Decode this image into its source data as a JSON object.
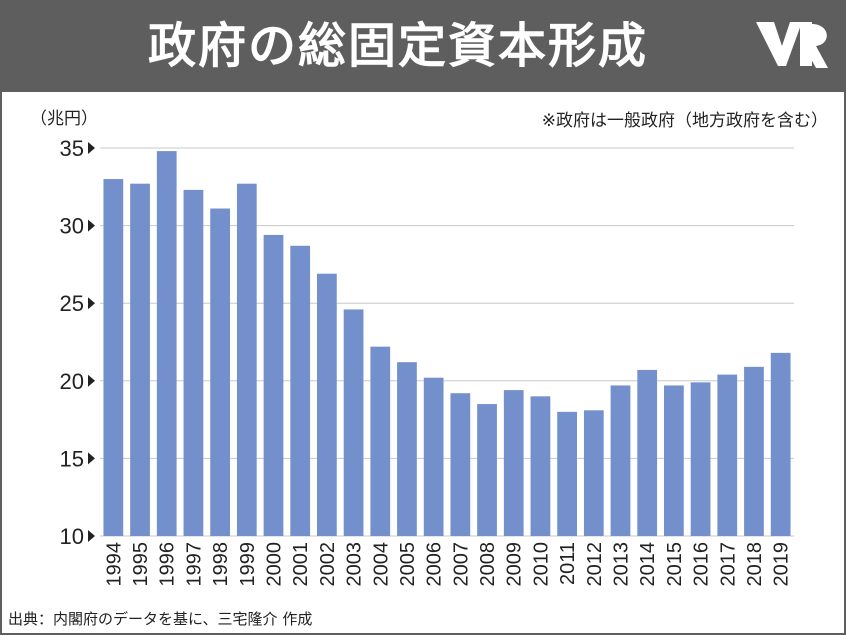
{
  "header": {
    "title": "政府の総固定資本形成",
    "logo_icon": "mr-logo-icon"
  },
  "unit_label": "（兆円）",
  "note": "※政府は一般政府（地方政府を含む）",
  "source": "出典：内閣府のデータを基に、三宅隆介 作成",
  "colors": {
    "header_bg": "#5e5e5e",
    "bar": "#7390cc",
    "grid": "#c8c8c8"
  },
  "chart_data": {
    "type": "bar",
    "title": "政府の総固定資本形成",
    "ylabel": "（兆円）",
    "xlabel": "",
    "ylim": [
      10,
      35
    ],
    "yticks": [
      "10",
      "15",
      "20",
      "25",
      "30",
      "35"
    ],
    "grid": true,
    "categories": [
      "1994",
      "1995",
      "1996",
      "1997",
      "1998",
      "1999",
      "2000",
      "2001",
      "2002",
      "2003",
      "2004",
      "2005",
      "2006",
      "2007",
      "2008",
      "2009",
      "2010",
      "2011",
      "2012",
      "2013",
      "2014",
      "2015",
      "2016",
      "2017",
      "2018",
      "2019"
    ],
    "values": [
      33.0,
      32.7,
      34.8,
      32.3,
      31.1,
      32.7,
      29.4,
      28.7,
      26.9,
      24.6,
      22.2,
      21.2,
      20.2,
      19.2,
      18.5,
      19.4,
      19.0,
      18.0,
      18.1,
      19.7,
      20.7,
      19.7,
      19.9,
      20.4,
      20.9,
      21.8
    ]
  }
}
